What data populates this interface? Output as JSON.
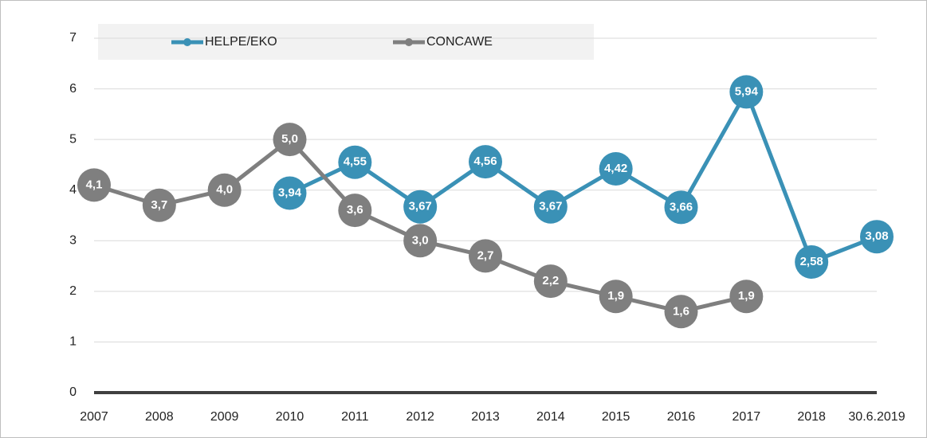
{
  "chart_data": {
    "type": "line",
    "categories": [
      "2007",
      "2008",
      "2009",
      "2010",
      "2011",
      "2012",
      "2013",
      "2014",
      "2015",
      "2016",
      "2017",
      "2018",
      "30.6.2019"
    ],
    "series": [
      {
        "name": "HELPE/EKO",
        "color": "#3a91b6",
        "values": [
          null,
          null,
          null,
          3.94,
          4.55,
          3.67,
          4.56,
          3.67,
          4.42,
          3.66,
          5.94,
          2.58,
          3.08
        ],
        "value_labels": [
          null,
          null,
          null,
          "3,94",
          "4,55",
          "3,67",
          "4,56",
          "3,67",
          "4,42",
          "3,66",
          "5,94",
          "2,58",
          "3,08"
        ]
      },
      {
        "name": "CONCAWE",
        "color": "#7f7f7f",
        "values": [
          4.1,
          3.7,
          4.0,
          5.0,
          3.6,
          3.0,
          2.7,
          2.2,
          1.9,
          1.6,
          1.9,
          null,
          null
        ],
        "value_labels": [
          "4,1",
          "3,7",
          "4,0",
          "5,0",
          "3,6",
          "3,0",
          "2,7",
          "2,2",
          "1,9",
          "1,6",
          "1,9",
          null,
          null
        ]
      }
    ],
    "ylim": [
      0,
      7
    ],
    "yticks": [
      0,
      1,
      2,
      3,
      4,
      5,
      6,
      7
    ],
    "grid": true,
    "legend": "top"
  }
}
